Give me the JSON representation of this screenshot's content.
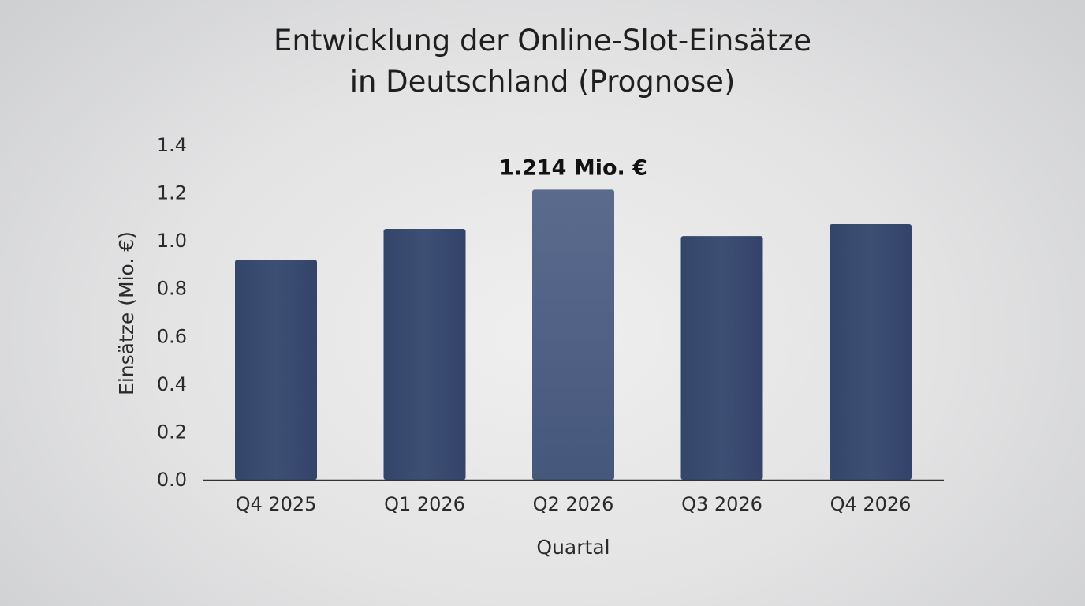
{
  "chart_data": {
    "type": "bar",
    "title_lines": [
      "Entwicklung der Online-Slot-Einsätze",
      "in Deutschland (Prognose)"
    ],
    "xlabel": "Quartal",
    "ylabel": "Einsätze (Mio. €)",
    "categories": [
      "Q4 2025",
      "Q1 2026",
      "Q2 2026",
      "Q3 2026",
      "Q4 2026"
    ],
    "values": [
      0.92,
      1.05,
      1.214,
      1.02,
      1.07
    ],
    "ylim": [
      0,
      1.4
    ],
    "yticks": [
      "0.0",
      "0.2",
      "0.4",
      "0.6",
      "0.8",
      "1.0",
      "1.2",
      "1.4"
    ],
    "grid": false,
    "annotations": [
      {
        "category": "Q2 2026",
        "text": "1.214 Mio. €"
      }
    ],
    "colors": {
      "bar": "#3a4a6e",
      "bar_highlight": "#56678a",
      "axis": "#333333"
    }
  }
}
